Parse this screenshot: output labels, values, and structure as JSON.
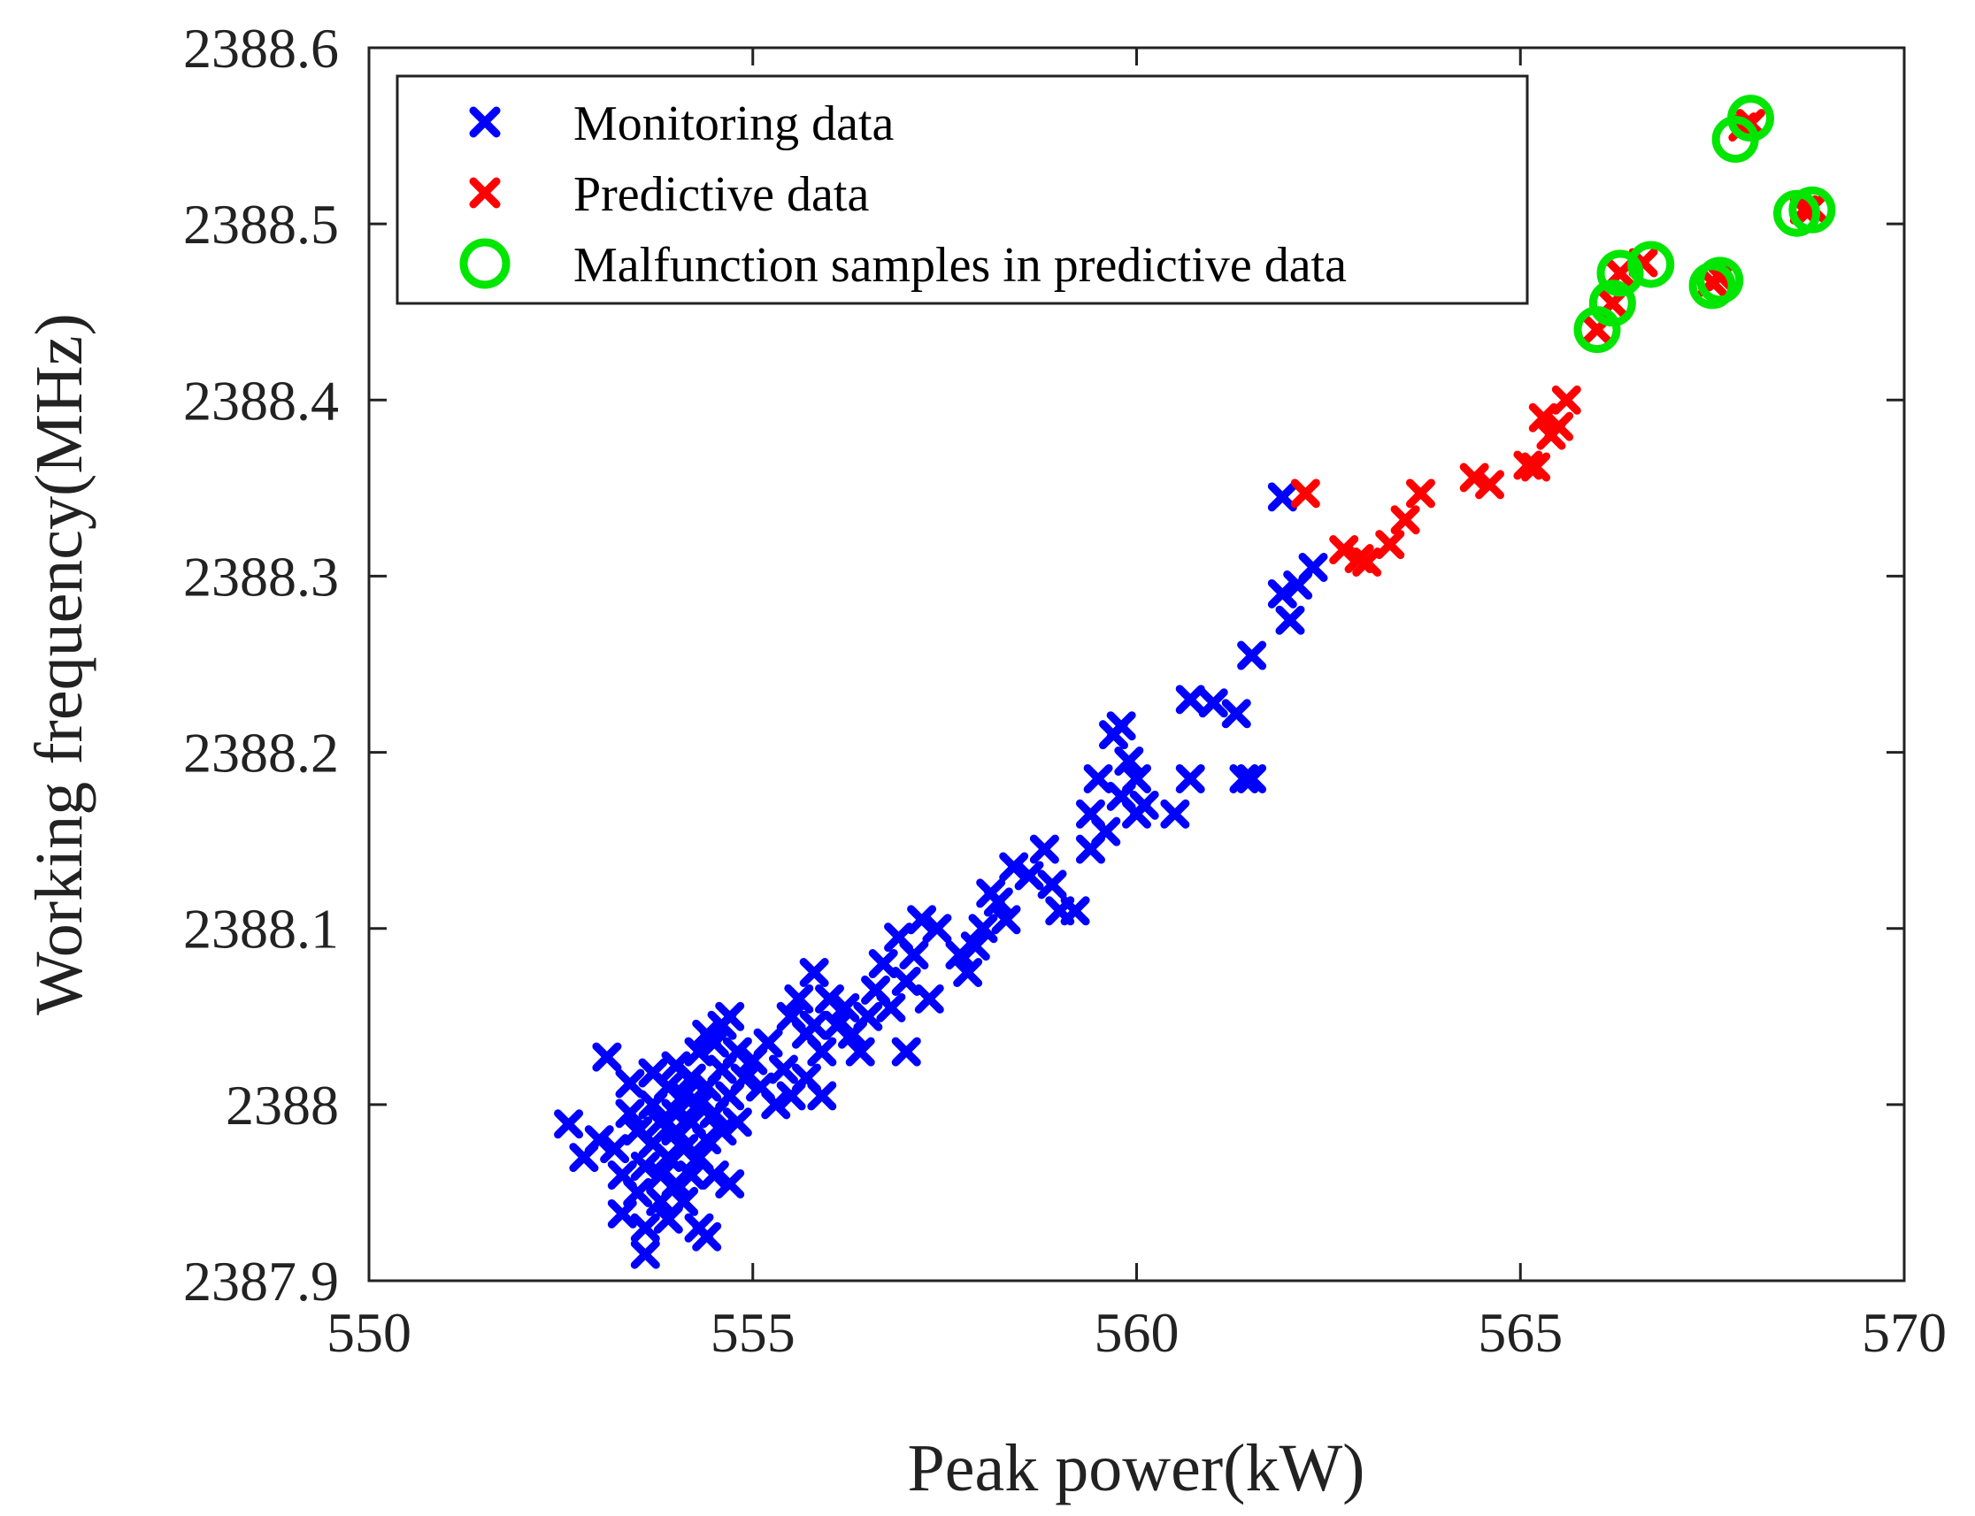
{
  "chart_data": {
    "type": "scatter",
    "xlabel": "Peak power(kW)",
    "ylabel": "Working frequency(MHz)",
    "xlim": [
      550,
      570
    ],
    "ylim": [
      2387.9,
      2388.6
    ],
    "x_ticks": [
      "550",
      "555",
      "560",
      "565",
      "570"
    ],
    "y_ticks": [
      "2387.9",
      "2388",
      "2388.1",
      "2388.2",
      "2388.3",
      "2388.4",
      "2388.5",
      "2388.6"
    ],
    "grid": false,
    "legend_position": "top-left",
    "colors": {
      "monitoring": "#0000ff",
      "predictive": "#ff0000",
      "malfunction": "#00e600"
    },
    "series": [
      {
        "name": "Monitoring data",
        "marker": "x",
        "points": [
          [
            552.6,
            2387.989
          ],
          [
            552.8,
            2387.97
          ],
          [
            553.0,
            2387.98
          ],
          [
            553.1,
            2388.027
          ],
          [
            553.2,
            2387.975
          ],
          [
            553.3,
            2387.96
          ],
          [
            553.3,
            2387.938
          ],
          [
            553.4,
            2388.012
          ],
          [
            553.4,
            2387.995
          ],
          [
            553.5,
            2387.985
          ],
          [
            553.5,
            2387.95
          ],
          [
            553.6,
            2387.93
          ],
          [
            553.6,
            2387.915
          ],
          [
            553.6,
            2387.965
          ],
          [
            553.7,
            2388.0
          ],
          [
            553.7,
            2388.018
          ],
          [
            553.7,
            2387.978
          ],
          [
            553.8,
            2387.945
          ],
          [
            553.8,
            2387.99
          ],
          [
            553.8,
            2387.96
          ],
          [
            553.9,
            2388.01
          ],
          [
            553.9,
            2387.97
          ],
          [
            553.9,
            2387.935
          ],
          [
            554.0,
            2388.022
          ],
          [
            554.0,
            2387.995
          ],
          [
            554.0,
            2387.955
          ],
          [
            554.0,
            2387.985
          ],
          [
            554.1,
            2388.005
          ],
          [
            554.1,
            2387.975
          ],
          [
            554.1,
            2387.945
          ],
          [
            554.2,
            2388.015
          ],
          [
            554.2,
            2387.99
          ],
          [
            554.2,
            2387.96
          ],
          [
            554.3,
            2388.03
          ],
          [
            554.3,
            2388.0
          ],
          [
            554.3,
            2387.97
          ],
          [
            554.3,
            2387.93
          ],
          [
            554.4,
            2388.04
          ],
          [
            554.4,
            2388.01
          ],
          [
            554.4,
            2387.98
          ],
          [
            554.4,
            2387.925
          ],
          [
            554.5,
            2388.035
          ],
          [
            554.5,
            2387.995
          ],
          [
            554.5,
            2387.96
          ],
          [
            554.6,
            2388.045
          ],
          [
            554.6,
            2388.02
          ],
          [
            554.6,
            2387.985
          ],
          [
            554.7,
            2388.05
          ],
          [
            554.7,
            2388.005
          ],
          [
            554.7,
            2387.955
          ],
          [
            554.8,
            2388.03
          ],
          [
            554.8,
            2387.99
          ],
          [
            554.9,
            2388.015
          ],
          [
            555.0,
            2388.025
          ],
          [
            555.1,
            2388.01
          ],
          [
            555.2,
            2388.035
          ],
          [
            555.3,
            2388.0
          ],
          [
            555.4,
            2388.02
          ],
          [
            555.5,
            2388.05
          ],
          [
            555.5,
            2388.005
          ],
          [
            555.6,
            2388.06
          ],
          [
            555.7,
            2388.04
          ],
          [
            555.7,
            2388.015
          ],
          [
            555.8,
            2388.075
          ],
          [
            555.8,
            2388.045
          ],
          [
            555.9,
            2388.03
          ],
          [
            555.9,
            2388.005
          ],
          [
            556.0,
            2388.06
          ],
          [
            556.1,
            2388.045
          ],
          [
            556.2,
            2388.055
          ],
          [
            556.3,
            2388.04
          ],
          [
            556.4,
            2388.03
          ],
          [
            556.5,
            2388.05
          ],
          [
            556.6,
            2388.065
          ],
          [
            556.7,
            2388.08
          ],
          [
            556.8,
            2388.055
          ],
          [
            556.9,
            2388.095
          ],
          [
            557.0,
            2388.07
          ],
          [
            557.0,
            2388.03
          ],
          [
            557.1,
            2388.085
          ],
          [
            557.2,
            2388.105
          ],
          [
            557.3,
            2388.06
          ],
          [
            557.4,
            2388.1
          ],
          [
            557.7,
            2388.085
          ],
          [
            557.8,
            2388.075
          ],
          [
            557.9,
            2388.09
          ],
          [
            558.0,
            2388.1
          ],
          [
            558.1,
            2388.12
          ],
          [
            558.2,
            2388.115
          ],
          [
            558.3,
            2388.105
          ],
          [
            558.4,
            2388.135
          ],
          [
            558.6,
            2388.13
          ],
          [
            558.8,
            2388.145
          ],
          [
            558.9,
            2388.125
          ],
          [
            559.0,
            2388.11
          ],
          [
            559.2,
            2388.11
          ],
          [
            559.4,
            2388.165
          ],
          [
            559.4,
            2388.145
          ],
          [
            559.5,
            2388.185
          ],
          [
            559.6,
            2388.155
          ],
          [
            559.7,
            2388.21
          ],
          [
            559.8,
            2388.215
          ],
          [
            559.8,
            2388.175
          ],
          [
            559.9,
            2388.195
          ],
          [
            560.0,
            2388.185
          ],
          [
            560.0,
            2388.165
          ],
          [
            560.1,
            2388.17
          ],
          [
            560.5,
            2388.165
          ],
          [
            560.7,
            2388.185
          ],
          [
            560.7,
            2388.23
          ],
          [
            561.0,
            2388.228
          ],
          [
            561.3,
            2388.222
          ],
          [
            561.4,
            2388.185
          ],
          [
            561.5,
            2388.185
          ],
          [
            561.5,
            2388.255
          ],
          [
            561.9,
            2388.29
          ],
          [
            562.0,
            2388.275
          ],
          [
            562.1,
            2388.295
          ],
          [
            562.3,
            2388.305
          ],
          [
            561.9,
            2388.345
          ]
        ]
      },
      {
        "name": "Predictive data",
        "marker": "x",
        "points": [
          [
            562.2,
            2388.347
          ],
          [
            562.7,
            2388.315
          ],
          [
            562.9,
            2388.31
          ],
          [
            563.0,
            2388.308
          ],
          [
            563.3,
            2388.318
          ],
          [
            563.5,
            2388.332
          ],
          [
            563.7,
            2388.347
          ],
          [
            564.4,
            2388.356
          ],
          [
            564.6,
            2388.352
          ],
          [
            565.1,
            2388.363
          ],
          [
            565.2,
            2388.362
          ],
          [
            565.3,
            2388.39
          ],
          [
            565.4,
            2388.38
          ],
          [
            565.5,
            2388.385
          ],
          [
            565.6,
            2388.4
          ],
          [
            566.0,
            2388.44
          ],
          [
            566.2,
            2388.455
          ],
          [
            566.3,
            2388.472
          ],
          [
            566.6,
            2388.478
          ],
          [
            567.5,
            2388.467
          ],
          [
            567.6,
            2388.47
          ],
          [
            567.9,
            2388.555
          ],
          [
            568.0,
            2388.557
          ],
          [
            568.7,
            2388.508
          ],
          [
            568.8,
            2388.509
          ]
        ]
      },
      {
        "name": "Malfunction samples in predictive data",
        "marker": "o",
        "points": [
          [
            566.0,
            2388.44
          ],
          [
            566.2,
            2388.455
          ],
          [
            566.3,
            2388.472
          ],
          [
            566.7,
            2388.477
          ],
          [
            567.5,
            2388.465
          ],
          [
            567.6,
            2388.468
          ],
          [
            567.8,
            2388.548
          ],
          [
            568.0,
            2388.56
          ],
          [
            568.6,
            2388.506
          ],
          [
            568.8,
            2388.508
          ]
        ]
      }
    ]
  }
}
